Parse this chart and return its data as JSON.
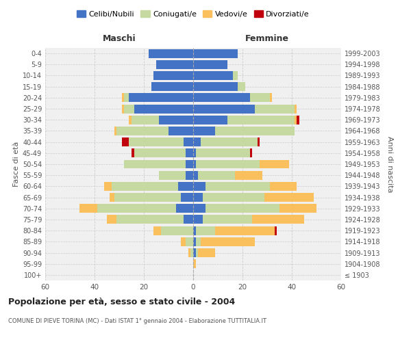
{
  "age_groups": [
    "100+",
    "95-99",
    "90-94",
    "85-89",
    "80-84",
    "75-79",
    "70-74",
    "65-69",
    "60-64",
    "55-59",
    "50-54",
    "45-49",
    "40-44",
    "35-39",
    "30-34",
    "25-29",
    "20-24",
    "15-19",
    "10-14",
    "5-9",
    "0-4"
  ],
  "birth_years": [
    "≤ 1903",
    "1904-1908",
    "1909-1913",
    "1914-1918",
    "1919-1923",
    "1924-1928",
    "1929-1933",
    "1934-1938",
    "1939-1943",
    "1944-1948",
    "1949-1953",
    "1954-1958",
    "1959-1963",
    "1964-1968",
    "1969-1973",
    "1974-1978",
    "1979-1983",
    "1984-1988",
    "1989-1993",
    "1994-1998",
    "1999-2003"
  ],
  "maschi": {
    "celibi": [
      0,
      0,
      0,
      0,
      0,
      4,
      7,
      5,
      6,
      3,
      3,
      3,
      4,
      10,
      14,
      24,
      26,
      17,
      16,
      15,
      18
    ],
    "coniugati": [
      0,
      0,
      1,
      3,
      13,
      27,
      32,
      27,
      27,
      11,
      25,
      21,
      22,
      21,
      11,
      4,
      2,
      0,
      0,
      0,
      0
    ],
    "vedovi": [
      0,
      0,
      1,
      2,
      3,
      4,
      7,
      2,
      3,
      0,
      0,
      0,
      0,
      1,
      1,
      1,
      1,
      0,
      0,
      0,
      0
    ],
    "divorziati": [
      0,
      0,
      0,
      0,
      0,
      0,
      0,
      0,
      0,
      0,
      0,
      1,
      3,
      0,
      0,
      0,
      0,
      0,
      0,
      0,
      0
    ]
  },
  "femmine": {
    "nubili": [
      0,
      0,
      1,
      1,
      1,
      4,
      5,
      4,
      5,
      2,
      1,
      1,
      3,
      9,
      14,
      25,
      23,
      18,
      16,
      14,
      18
    ],
    "coniugate": [
      0,
      0,
      1,
      2,
      8,
      20,
      30,
      25,
      26,
      15,
      26,
      22,
      23,
      32,
      27,
      16,
      8,
      3,
      2,
      0,
      0
    ],
    "vedove": [
      0,
      1,
      7,
      22,
      24,
      21,
      15,
      20,
      11,
      11,
      12,
      0,
      0,
      0,
      1,
      1,
      1,
      0,
      0,
      0,
      0
    ],
    "divorziate": [
      0,
      0,
      0,
      0,
      1,
      0,
      0,
      0,
      0,
      0,
      0,
      1,
      1,
      0,
      1,
      0,
      0,
      0,
      0,
      0,
      0
    ]
  },
  "colors": {
    "celibe": "#4472C4",
    "coniugato": "#C5D9A0",
    "vedovo": "#FAC05E",
    "divorziato": "#C0000C"
  },
  "title": "Popolazione per età, sesso e stato civile - 2004",
  "subtitle": "COMUNE DI PIEVE TORINA (MC) - Dati ISTAT 1° gennaio 2004 - Elaborazione TUTTITALIA.IT",
  "xlabel_left": "Maschi",
  "xlabel_right": "Femmine",
  "ylabel_left": "Fasce di età",
  "ylabel_right": "Anni di nascita",
  "xlim": 60,
  "background_color": "#ffffff",
  "plot_bg_color": "#f0f0f0",
  "grid_color": "#cccccc"
}
